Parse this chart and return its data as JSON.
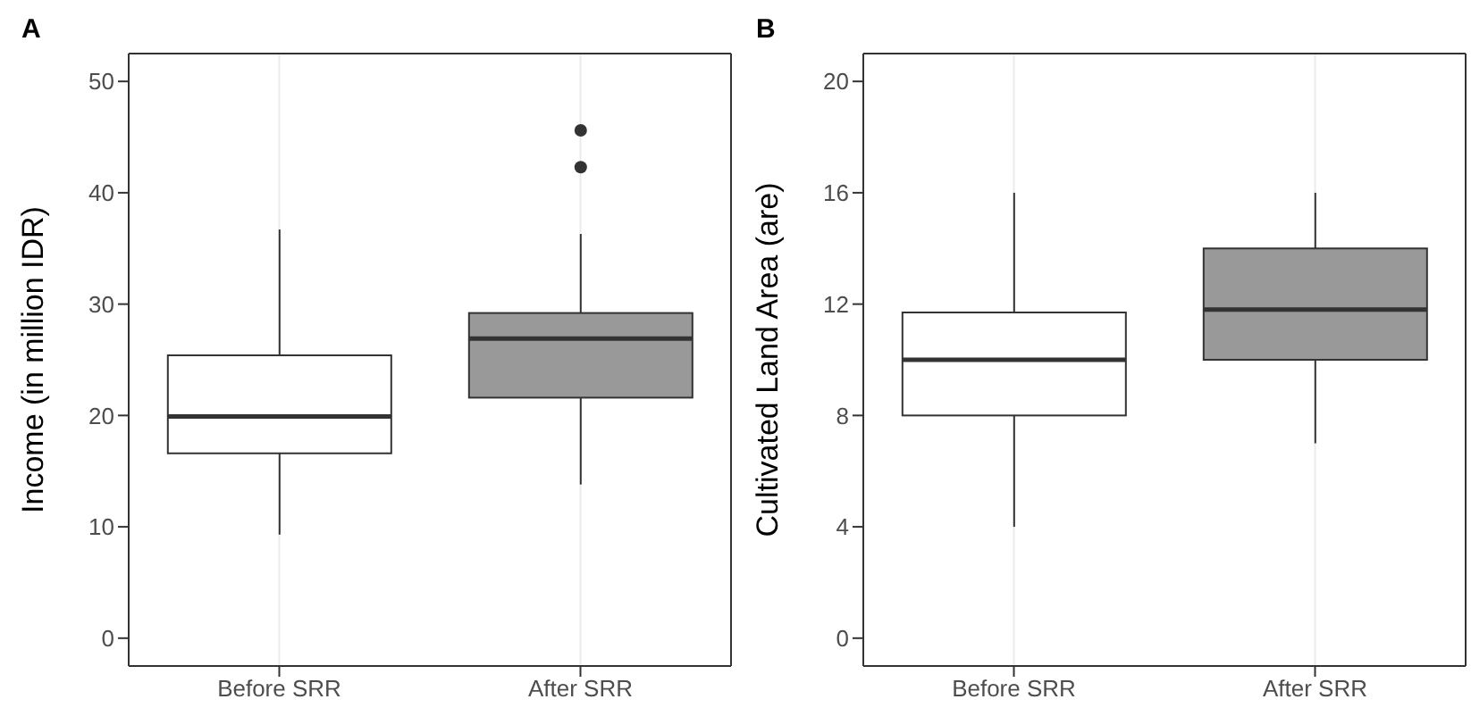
{
  "chart_data": [
    {
      "type": "box",
      "title": "A",
      "categories": [
        "Before SRR",
        "After SRR"
      ],
      "ylabel": "Income (in million IDR)",
      "ylim": [
        -2.5,
        52.5
      ],
      "yticks": [
        0,
        10,
        20,
        30,
        40,
        50
      ],
      "grid": true,
      "colors": [
        "#ffffff",
        "#999999"
      ],
      "boxes": [
        {
          "low": 9.3,
          "q1": 16.6,
          "median": 19.9,
          "q3": 25.4,
          "high": 36.7
        },
        {
          "low": 13.8,
          "q1": 21.6,
          "median": 26.9,
          "q3": 29.2,
          "high": 36.3,
          "outliers": [
            42.3,
            45.6
          ]
        }
      ]
    },
    {
      "type": "box",
      "title": "B",
      "categories": [
        "Before SRR",
        "After SRR"
      ],
      "ylabel": "Cultivated Land Area (are)",
      "ylim": [
        -1,
        21
      ],
      "yticks": [
        0,
        4,
        8,
        12,
        16,
        20
      ],
      "grid": true,
      "colors": [
        "#ffffff",
        "#999999"
      ],
      "boxes": [
        {
          "low": 4,
          "q1": 8,
          "median": 10,
          "q3": 11.7,
          "high": 16
        },
        {
          "low": 7,
          "q1": 10,
          "median": 11.8,
          "q3": 14,
          "high": 16
        }
      ]
    }
  ]
}
